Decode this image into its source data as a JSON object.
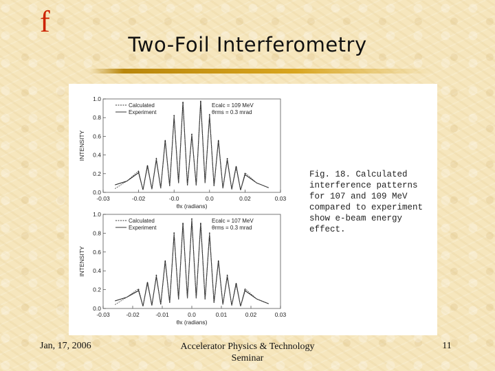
{
  "slide": {
    "logo": "f",
    "title": "Two-Foil Interferometry",
    "footer_date": "Jan, 17, 2006",
    "footer_center_line1": "Accelerator Physics & Technology",
    "footer_center_line2": "Seminar",
    "page_number": "11"
  },
  "figure": {
    "caption": "Fig. 18.  Calculated\ninterference patterns\nfor 107 and 109 MeV\ncompared to experiment\nshow e-beam energy\neffect."
  },
  "chart_data": [
    {
      "type": "line",
      "ylabel": "INTENSITY",
      "xlabel": "θx (radians)",
      "y_ticks": [
        "1.0",
        "0.8",
        "0.6",
        "0.4",
        "0.2",
        "0.0"
      ],
      "x_ticks": [
        "-0.03",
        "-0.02",
        "-0.0",
        "0.0",
        "0.02",
        "0.03"
      ],
      "ylim": [
        0,
        1.0
      ],
      "xlim": [
        -0.03,
        0.03
      ],
      "legend": [
        "Calculated",
        "Experiment"
      ],
      "annotation_line1": "Ecalc = 109 MeV",
      "annotation_line2": "θrms = 0.3 mrad",
      "peaks": [
        {
          "x": -0.018,
          "y": 0.22
        },
        {
          "x": -0.015,
          "y": 0.28
        },
        {
          "x": -0.012,
          "y": 0.36
        },
        {
          "x": -0.009,
          "y": 0.55
        },
        {
          "x": -0.006,
          "y": 0.82
        },
        {
          "x": -0.003,
          "y": 0.96
        },
        {
          "x": 0.0,
          "y": 0.62
        },
        {
          "x": 0.003,
          "y": 0.97
        },
        {
          "x": 0.006,
          "y": 0.83
        },
        {
          "x": 0.009,
          "y": 0.55
        },
        {
          "x": 0.012,
          "y": 0.36
        },
        {
          "x": 0.015,
          "y": 0.27
        },
        {
          "x": 0.018,
          "y": 0.2
        }
      ]
    },
    {
      "type": "line",
      "ylabel": "INTENSITY",
      "xlabel": "θx (radians)",
      "y_ticks": [
        "1.0",
        "0.8",
        "0.6",
        "0.4",
        "0.2",
        "0.0"
      ],
      "x_ticks": [
        "-0.03",
        "-0.02",
        "-0.01",
        "0.0",
        "0.01",
        "0.02",
        "0.03"
      ],
      "ylim": [
        0,
        1.0
      ],
      "xlim": [
        -0.03,
        0.03
      ],
      "legend": [
        "Calculated",
        "Experiment"
      ],
      "annotation_line1": "Ecalc = 107 MeV",
      "annotation_line2": "θrms = 0.3 mrad",
      "peaks": [
        {
          "x": -0.018,
          "y": 0.2
        },
        {
          "x": -0.015,
          "y": 0.27
        },
        {
          "x": -0.012,
          "y": 0.35
        },
        {
          "x": -0.009,
          "y": 0.5
        },
        {
          "x": -0.006,
          "y": 0.8
        },
        {
          "x": -0.003,
          "y": 0.9
        },
        {
          "x": 0.0,
          "y": 0.95
        },
        {
          "x": 0.003,
          "y": 0.9
        },
        {
          "x": 0.006,
          "y": 0.8
        },
        {
          "x": 0.009,
          "y": 0.5
        },
        {
          "x": 0.012,
          "y": 0.35
        },
        {
          "x": 0.015,
          "y": 0.26
        },
        {
          "x": 0.018,
          "y": 0.2
        }
      ]
    }
  ]
}
